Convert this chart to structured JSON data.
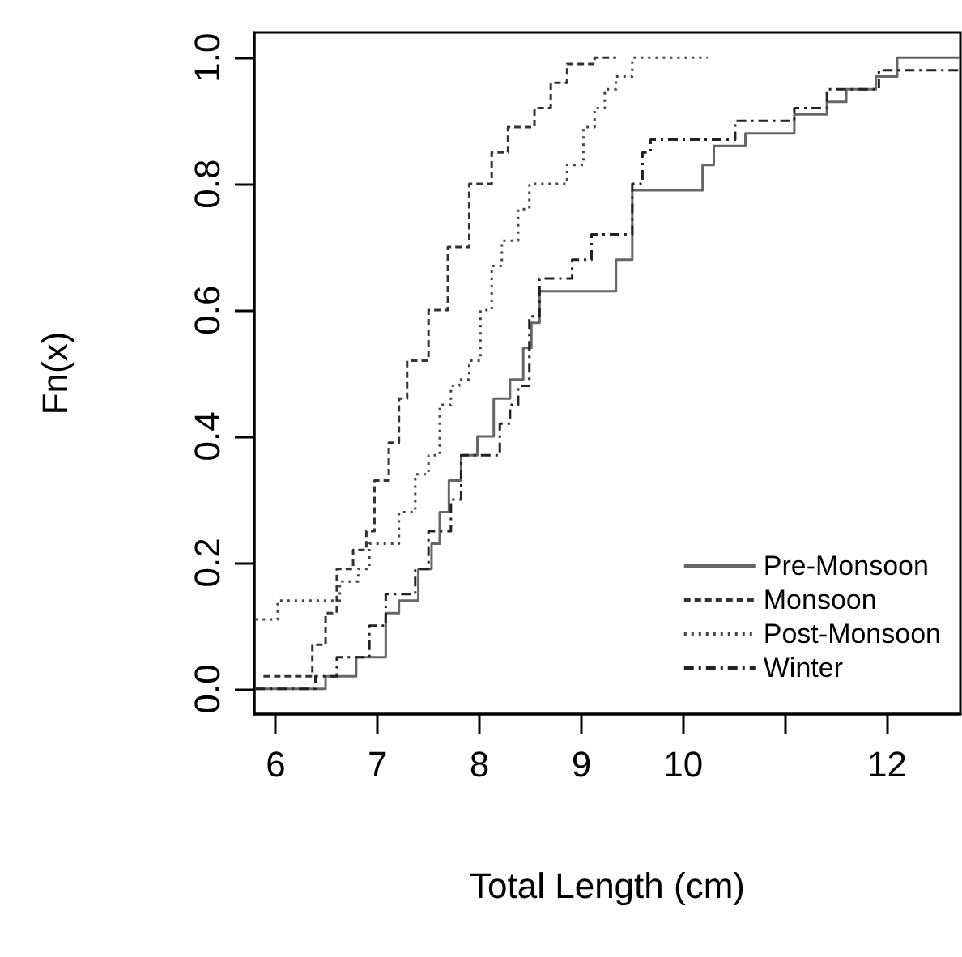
{
  "chart_data": {
    "type": "step",
    "xlabel": "Total Length (cm)",
    "ylabel": "Fn(x)",
    "xlim": [
      5.79,
      12.72
    ],
    "ylim": [
      -0.04,
      1.04
    ],
    "xticks": [
      6,
      7,
      8,
      9,
      10,
      {
        "value": 11,
        "label": null
      },
      12
    ],
    "yticks": [
      {
        "value": 0,
        "label": "0.0"
      },
      {
        "value": 0.2,
        "label": "0.2"
      },
      {
        "value": 0.4,
        "label": "0.4"
      },
      {
        "value": 0.6,
        "label": "0.6"
      },
      {
        "value": 0.8,
        "label": "0.8"
      },
      {
        "value": 1,
        "label": "1.0"
      }
    ],
    "grid": false,
    "legend": "bottom right",
    "series": [
      {
        "name": "Pre-Monsoon",
        "color": "#666666",
        "line_style": "solid",
        "x": [
          5.8,
          6.49,
          6.79,
          7.08,
          7.21,
          7.4,
          7.53,
          7.61,
          7.7,
          7.82,
          7.98,
          8.14,
          8.3,
          8.43,
          8.51,
          8.59,
          9.34,
          9.5,
          10.19,
          10.3,
          10.61,
          11.09,
          11.41,
          11.6,
          11.89,
          12.1,
          12.72
        ],
        "values": [
          0,
          0.02,
          0.05,
          0.12,
          0.14,
          0.19,
          0.23,
          0.28,
          0.33,
          0.37,
          0.4,
          0.46,
          0.49,
          0.54,
          0.58,
          0.63,
          0.68,
          0.79,
          0.83,
          0.86,
          0.88,
          0.91,
          0.93,
          0.95,
          0.97,
          1,
          1
        ]
      },
      {
        "name": "Monsoon",
        "color": "#333333",
        "line_style": "dashed",
        "x": [
          5.88,
          6.36,
          6.49,
          6.6,
          6.76,
          6.89,
          6.97,
          7.11,
          7.21,
          7.29,
          7.5,
          7.69,
          7.9,
          8.12,
          8.28,
          8.54,
          8.7,
          8.86,
          9.13,
          9.34
        ],
        "values": [
          0.02,
          0.07,
          0.12,
          0.19,
          0.22,
          0.25,
          0.33,
          0.39,
          0.46,
          0.52,
          0.6,
          0.7,
          0.8,
          0.85,
          0.89,
          0.92,
          0.96,
          0.99,
          1,
          1
        ]
      },
      {
        "name": "Post-Monsoon",
        "color": "#444444",
        "line_style": "dotted",
        "x": [
          5.8,
          6.02,
          6.63,
          6.81,
          6.92,
          7.21,
          7.37,
          7.5,
          7.61,
          7.72,
          7.8,
          7.9,
          8.01,
          8.12,
          8.22,
          8.38,
          8.49,
          8.86,
          9.02,
          9.13,
          9.23,
          9.34,
          9.5,
          10.24
        ],
        "values": [
          0.11,
          0.14,
          0.17,
          0.19,
          0.23,
          0.28,
          0.34,
          0.37,
          0.45,
          0.48,
          0.49,
          0.52,
          0.6,
          0.67,
          0.71,
          0.76,
          0.8,
          0.83,
          0.89,
          0.92,
          0.95,
          0.97,
          1,
          1
        ]
      },
      {
        "name": "Winter",
        "color": "#222222",
        "line_style": "dashdot",
        "x": [
          5.8,
          6.39,
          6.6,
          6.92,
          7.08,
          7.37,
          7.5,
          7.72,
          7.82,
          8.2,
          8.3,
          8.38,
          8.49,
          8.59,
          8.91,
          9.1,
          9.5,
          9.6,
          9.68,
          10.51,
          11.09,
          11.41,
          11.92,
          12.72
        ],
        "values": [
          0,
          0.02,
          0.05,
          0.1,
          0.15,
          0.19,
          0.25,
          0.3,
          0.37,
          0.42,
          0.45,
          0.48,
          0.59,
          0.65,
          0.68,
          0.72,
          0.8,
          0.85,
          0.87,
          0.9,
          0.92,
          0.95,
          0.98,
          0.98
        ]
      }
    ]
  }
}
